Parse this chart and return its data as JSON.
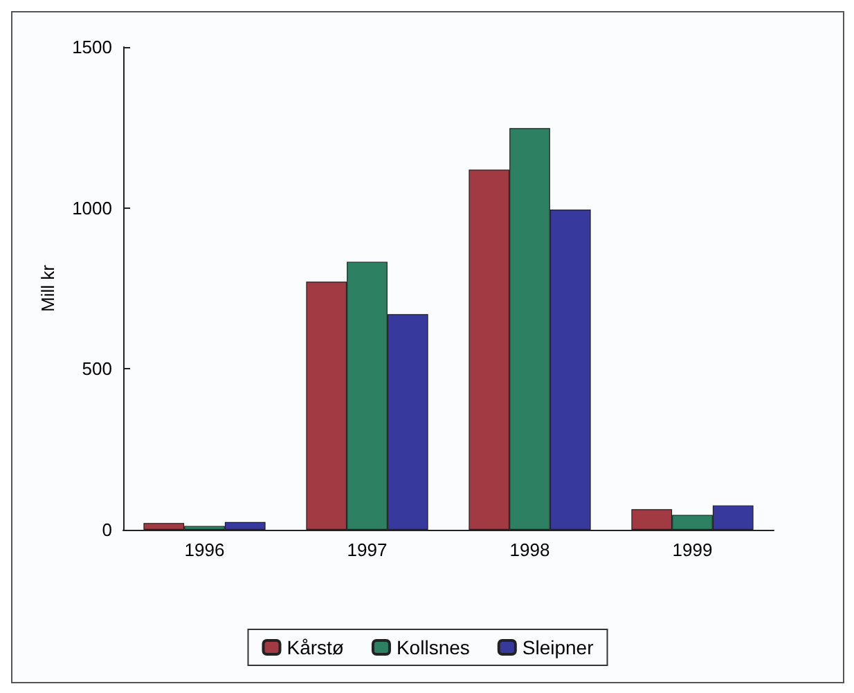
{
  "chart_data": {
    "type": "bar",
    "ylabel": "Mill kr",
    "categories": [
      "1996",
      "1997",
      "1998",
      "1999"
    ],
    "series": [
      {
        "name": "Kårstø",
        "color": "#a23a44",
        "values": [
          21,
          771,
          1119,
          64
        ]
      },
      {
        "name": "Kollsnes",
        "color": "#2e8062",
        "values": [
          12,
          833,
          1248,
          46
        ]
      },
      {
        "name": "Sleipner",
        "color": "#38399c",
        "values": [
          24,
          670,
          995,
          76
        ]
      }
    ],
    "ylim": [
      0,
      1500
    ],
    "yticks": [
      0,
      500,
      1000,
      1500
    ],
    "grid": false,
    "legend": "bottom"
  }
}
